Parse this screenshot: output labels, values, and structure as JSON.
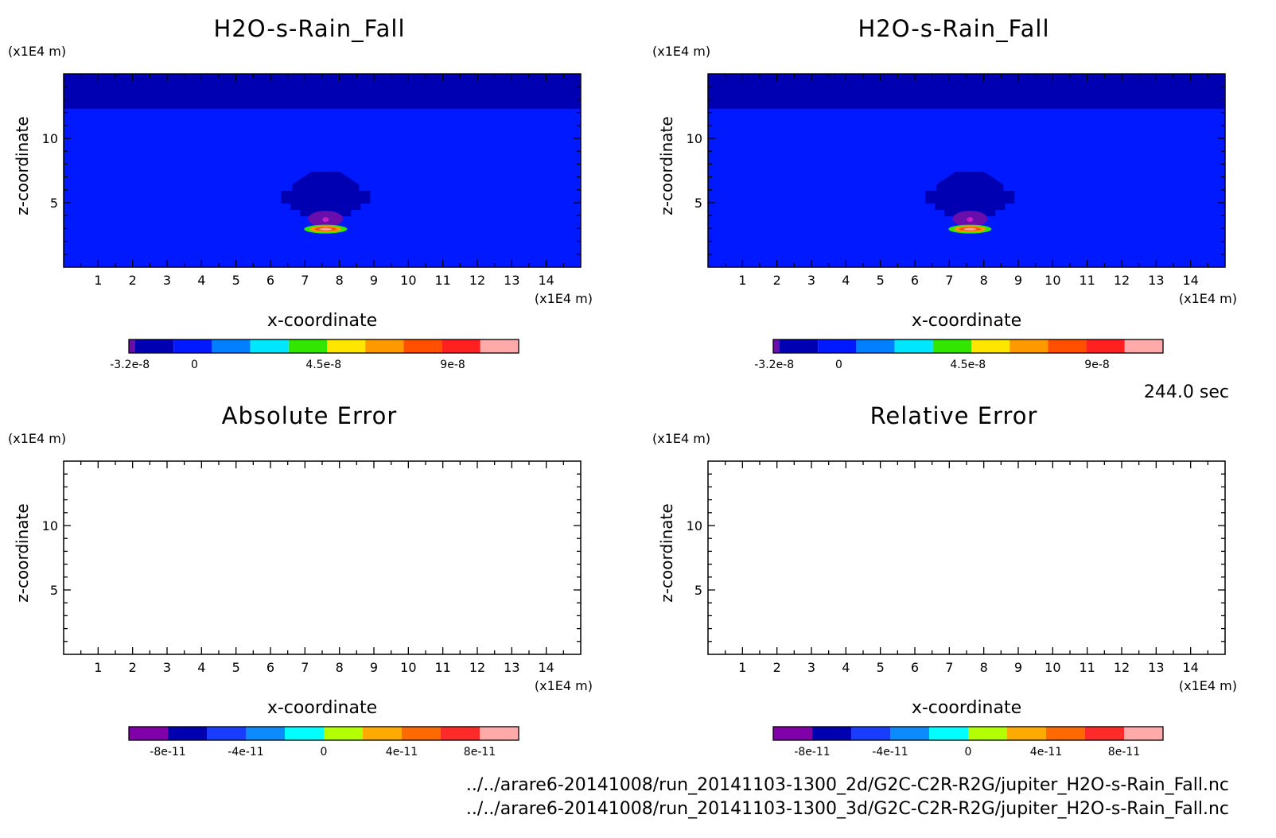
{
  "time_label": "244.0 sec",
  "files": [
    "../../arare6-20141008/run_20141103-1300_2d/G2C-C2R-R2G/jupiter_H2O-s-Rain_Fall.nc",
    "../../arare6-20141008/run_20141103-1300_3d/G2C-C2R-R2G/jupiter_H2O-s-Rain_Fall.nc"
  ],
  "chart_data": [
    {
      "type": "heatmap",
      "title": "H2O-s-Rain_Fall",
      "xlabel": "x-coordinate",
      "ylabel": "z-coordinate",
      "x_unit": "(x1E4 m)",
      "y_unit": "(x1E4 m)",
      "xlim": [
        0,
        15
      ],
      "ylim": [
        0,
        15
      ],
      "xticks": [
        1,
        2,
        3,
        4,
        5,
        6,
        7,
        8,
        9,
        10,
        11,
        12,
        13,
        14
      ],
      "yticks": [
        5,
        10
      ],
      "field": {
        "background": 0,
        "top_layer": {
          "z_from": 12.3,
          "z_to": 15,
          "value": -1.2e-08
        },
        "blob": {
          "x_center": 7.6,
          "z_center": 5.3,
          "value_outer": -1.2e-08,
          "value_inner": -2.8e-08,
          "min_value": -3.2e-08,
          "max_value": 1e-07
        }
      },
      "colorbar": {
        "colors": [
          "#6a0dad",
          "#0000b3",
          "#0019ff",
          "#0080ff",
          "#00e6ff",
          "#33e600",
          "#ffe600",
          "#ff9900",
          "#ff5000",
          "#ff2020",
          "#ffaaaa"
        ],
        "tick_labels": [
          "-3.2e-8",
          "0",
          "4.5e-8",
          "9e-8"
        ],
        "tick_values": [
          -3.2e-08,
          0,
          4.5e-08,
          9e-08
        ],
        "range": [
          -3.4e-08,
          1.13e-07
        ]
      }
    },
    {
      "type": "heatmap",
      "title": "H2O-s-Rain_Fall",
      "xlabel": "x-coordinate",
      "ylabel": "z-coordinate",
      "x_unit": "(x1E4 m)",
      "y_unit": "(x1E4 m)",
      "xlim": [
        0,
        15
      ],
      "ylim": [
        0,
        15
      ],
      "xticks": [
        1,
        2,
        3,
        4,
        5,
        6,
        7,
        8,
        9,
        10,
        11,
        12,
        13,
        14
      ],
      "yticks": [
        5,
        10
      ],
      "field": {
        "background": 0,
        "top_layer": {
          "z_from": 12.3,
          "z_to": 15,
          "value": -1.2e-08
        },
        "blob": {
          "x_center": 7.6,
          "z_center": 5.3,
          "value_outer": -1.2e-08,
          "value_inner": -2.8e-08,
          "min_value": -3.2e-08,
          "max_value": 1e-07
        }
      },
      "colorbar": {
        "colors": [
          "#6a0dad",
          "#0000b3",
          "#0019ff",
          "#0080ff",
          "#00e6ff",
          "#33e600",
          "#ffe600",
          "#ff9900",
          "#ff5000",
          "#ff2020",
          "#ffaaaa"
        ],
        "tick_labels": [
          "-3.2e-8",
          "0",
          "4.5e-8",
          "9e-8"
        ],
        "tick_values": [
          -3.2e-08,
          0,
          4.5e-08,
          9e-08
        ],
        "range": [
          -3.4e-08,
          1.13e-07
        ]
      }
    },
    {
      "type": "heatmap",
      "title": "Absolute Error",
      "xlabel": "x-coordinate",
      "ylabel": "z-coordinate",
      "x_unit": "(x1E4 m)",
      "y_unit": "(x1E4 m)",
      "xlim": [
        0,
        15
      ],
      "ylim": [
        0,
        15
      ],
      "xticks": [
        1,
        2,
        3,
        4,
        5,
        6,
        7,
        8,
        9,
        10,
        11,
        12,
        13,
        14
      ],
      "yticks": [
        5,
        10
      ],
      "field": null,
      "colorbar": {
        "colors": [
          "#7f00aa",
          "#0000b3",
          "#1a3cff",
          "#0a8cff",
          "#00ffff",
          "#b3ff00",
          "#ffaa00",
          "#ff6a00",
          "#ff2a2a",
          "#ffaaaa"
        ],
        "tick_labels": [
          "-8e-11",
          "-4e-11",
          "0",
          "4e-11",
          "8e-11"
        ],
        "tick_values": [
          -8e-11,
          -4e-11,
          0,
          4e-11,
          8e-11
        ],
        "range": [
          -1e-10,
          1e-10
        ]
      }
    },
    {
      "type": "heatmap",
      "title": "Relative Error",
      "xlabel": "x-coordinate",
      "ylabel": "z-coordinate",
      "x_unit": "(x1E4 m)",
      "y_unit": "(x1E4 m)",
      "xlim": [
        0,
        15
      ],
      "ylim": [
        0,
        15
      ],
      "xticks": [
        1,
        2,
        3,
        4,
        5,
        6,
        7,
        8,
        9,
        10,
        11,
        12,
        13,
        14
      ],
      "yticks": [
        5,
        10
      ],
      "field": null,
      "colorbar": {
        "colors": [
          "#7f00aa",
          "#0000b3",
          "#1a3cff",
          "#0a8cff",
          "#00ffff",
          "#b3ff00",
          "#ffaa00",
          "#ff6a00",
          "#ff2a2a",
          "#ffaaaa"
        ],
        "tick_labels": [
          "-8e-11",
          "-4e-11",
          "0",
          "4e-11",
          "8e-11"
        ],
        "tick_values": [
          -8e-11,
          -4e-11,
          0,
          4e-11,
          8e-11
        ],
        "range": [
          -1e-10,
          1e-10
        ]
      }
    }
  ]
}
